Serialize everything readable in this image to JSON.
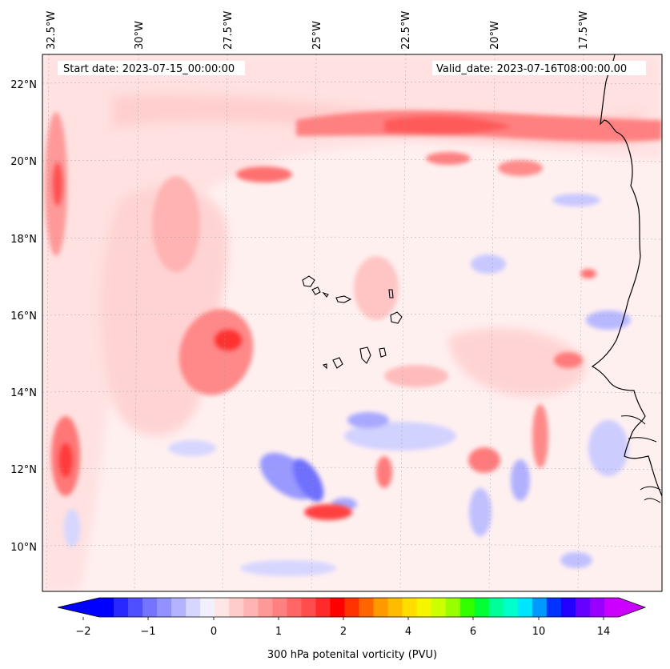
{
  "map": {
    "start_date": "Start date: 2023-07-15_00:00:00",
    "valid_date": "Valid_date: 2023-07-16T08:00:00.00",
    "lon_labels": [
      "32.5°W",
      "30°W",
      "27.5°W",
      "25°W",
      "22.5°W",
      "20°W",
      "17.5°W"
    ],
    "lat_labels": [
      "22°N",
      "20°N",
      "18°N",
      "16°N",
      "14°N",
      "12°N",
      "10°N"
    ],
    "land_label": "West Africa coastline",
    "islands_label": "Cape Verde Islands"
  },
  "colorbar": {
    "label": "300 hPa potenital vorticity (PVU)",
    "tick_labels": [
      "−2",
      "−1",
      "0",
      "1",
      "2",
      "4",
      "6",
      "10",
      "14"
    ],
    "colors": [
      "#0000ff",
      "#2929ff",
      "#4f4fff",
      "#7474ff",
      "#9191ff",
      "#b3b3ff",
      "#d6d6ff",
      "#f0f0ff",
      "#ffe6e6",
      "#ffcccc",
      "#ffb3b3",
      "#ff9999",
      "#ff8080",
      "#ff6666",
      "#ff4d4d",
      "#ff2a2a",
      "#ff0000",
      "#ff3300",
      "#ff6600",
      "#ff9900",
      "#ffbb00",
      "#ffdd00",
      "#f5f500",
      "#ccff00",
      "#99ff00",
      "#33ff00",
      "#00ff33",
      "#00ff99",
      "#00ffcc",
      "#00e5ff",
      "#0099ff",
      "#0033ff",
      "#2200ff",
      "#6600ff",
      "#9900ff",
      "#cc00ff"
    ],
    "extend_low": "#0000ff",
    "extend_high": "#cc00ff"
  }
}
